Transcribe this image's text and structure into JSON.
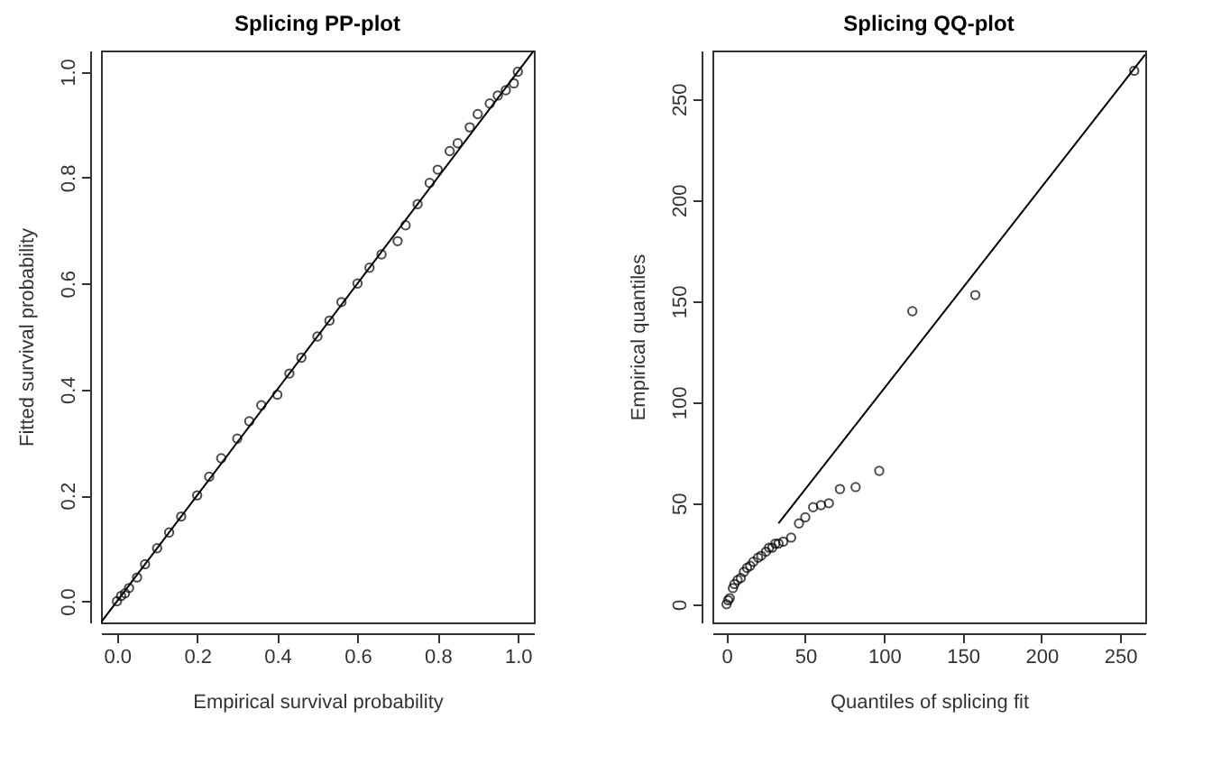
{
  "chart_data": [
    {
      "type": "scatter",
      "title": "Splicing PP-plot",
      "xlabel": "Empirical survival probability",
      "ylabel": "Fitted survival probability",
      "xlim": [
        -0.04,
        1.04
      ],
      "ylim": [
        -0.04,
        1.04
      ],
      "xticks": [
        {
          "value": 0,
          "label": "0.0"
        },
        0.2,
        0.4,
        0.6,
        0.8,
        {
          "value": 1,
          "label": "1.0"
        }
      ],
      "yticks": [
        {
          "value": 0,
          "label": "0.0"
        },
        0.2,
        0.4,
        0.6,
        0.8,
        {
          "value": 1,
          "label": "1.0"
        }
      ],
      "series": [
        {
          "type": "scatter",
          "marker": "circle",
          "color": "#000000",
          "x": [
            0,
            0.01,
            0.02,
            0.03,
            0.05,
            0.07,
            0.1,
            0.13,
            0.16,
            0.2,
            0.23,
            0.26,
            0.3,
            0.33,
            0.36,
            0.4,
            0.43,
            0.46,
            0.5,
            0.53,
            0.56,
            0.6,
            0.63,
            0.66,
            0.7,
            0.72,
            0.75,
            0.78,
            0.8,
            0.83,
            0.85,
            0.88,
            0.9,
            0.93,
            0.95,
            0.97,
            0.99,
            1.0
          ],
          "values": [
            0,
            0.01,
            0.015,
            0.025,
            0.045,
            0.07,
            0.1,
            0.13,
            0.16,
            0.2,
            0.235,
            0.27,
            0.307,
            0.34,
            0.37,
            0.39,
            0.43,
            0.46,
            0.5,
            0.53,
            0.565,
            0.6,
            0.63,
            0.655,
            0.68,
            0.71,
            0.75,
            0.79,
            0.815,
            0.85,
            0.865,
            0.895,
            0.92,
            0.94,
            0.955,
            0.965,
            0.978,
            1.0
          ]
        },
        {
          "type": "line",
          "marker": "none",
          "line_style": "solid",
          "color": "#000000",
          "x": [
            -0.04,
            1.04
          ],
          "values": [
            -0.04,
            1.04
          ]
        }
      ]
    },
    {
      "type": "scatter",
      "title": "Splicing QQ-plot",
      "xlabel": "Quantiles of splicing fit",
      "ylabel": "Empirical quantiles",
      "xlim": [
        -9,
        266
      ],
      "ylim": [
        -9,
        274
      ],
      "xticks": [
        0,
        50,
        100,
        150,
        200,
        250
      ],
      "yticks": [
        0,
        50,
        100,
        150,
        200,
        250
      ],
      "series": [
        {
          "type": "scatter",
          "marker": "circle",
          "color": "#000000",
          "x": [
            0,
            1,
            2,
            4,
            5,
            7,
            9,
            11,
            13,
            15,
            17,
            20,
            22,
            25,
            27,
            29,
            31,
            33,
            36,
            41,
            46,
            50,
            55,
            60,
            65,
            72,
            82,
            97,
            118,
            158,
            259
          ],
          "values": [
            0,
            2,
            3,
            8,
            10,
            12,
            13,
            16,
            18,
            19,
            21,
            23,
            24,
            26,
            28,
            28,
            30,
            30,
            31,
            33,
            40,
            43,
            48,
            49,
            50,
            57,
            58,
            66,
            145,
            153,
            264
          ]
        },
        {
          "type": "line",
          "marker": "none",
          "line_style": "solid",
          "color": "#000000",
          "x": [
            33,
            266
          ],
          "values": [
            40,
            272
          ]
        }
      ]
    }
  ]
}
